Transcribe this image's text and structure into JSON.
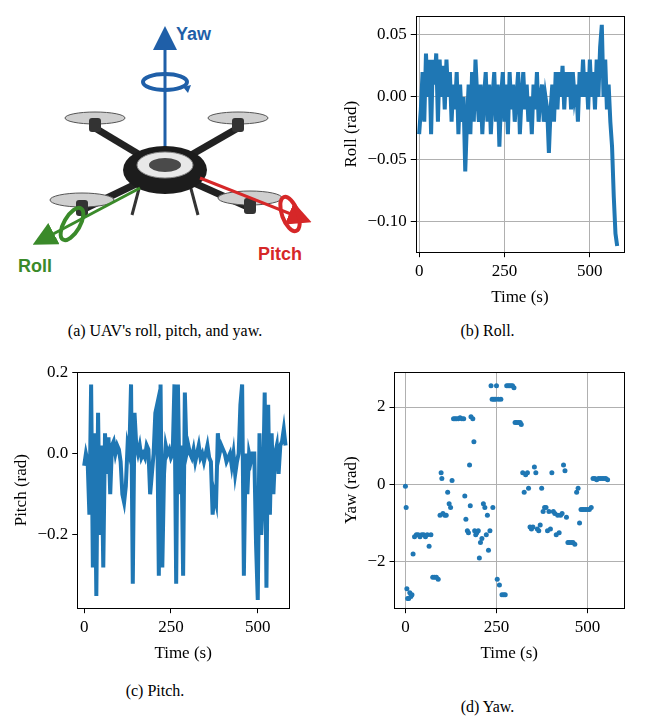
{
  "diagram": {
    "labels": {
      "yaw": "Yaw",
      "pitch": "Pitch",
      "roll": "Roll"
    },
    "caption": "(a) UAV's roll, pitch, and yaw."
  },
  "chart_data": [
    {
      "type": "line",
      "caption": "(b) Roll.",
      "x_label": "Time (s)",
      "y_label": "Roll (rad)",
      "color": "#1f77b4",
      "line_style": "solid",
      "grid": true,
      "xlim": [
        -10,
        600
      ],
      "xticks": [
        0,
        250,
        500
      ],
      "ylim": [
        -0.125,
        0.065
      ],
      "yticks": [
        {
          "value": -0.1,
          "label": "−0.10"
        },
        {
          "value": -0.05,
          "label": "−0.05"
        },
        {
          "value": 0,
          "label": "0.00"
        },
        {
          "value": 0.05,
          "label": "0.05"
        }
      ],
      "x": [
        0,
        5,
        10,
        15,
        20,
        25,
        30,
        35,
        40,
        45,
        50,
        55,
        60,
        65,
        70,
        75,
        80,
        85,
        90,
        95,
        100,
        105,
        110,
        115,
        120,
        125,
        130,
        135,
        140,
        145,
        150,
        155,
        160,
        165,
        170,
        175,
        180,
        185,
        190,
        195,
        200,
        205,
        210,
        215,
        220,
        225,
        230,
        235,
        240,
        245,
        250,
        255,
        260,
        265,
        270,
        275,
        280,
        285,
        290,
        295,
        300,
        305,
        310,
        315,
        320,
        325,
        330,
        335,
        340,
        345,
        350,
        355,
        360,
        365,
        370,
        375,
        380,
        385,
        390,
        395,
        400,
        405,
        410,
        415,
        420,
        425,
        430,
        435,
        440,
        445,
        450,
        455,
        460,
        465,
        470,
        475,
        480,
        485,
        490,
        495,
        500,
        505,
        510,
        515,
        520,
        525,
        530,
        535,
        540,
        545,
        550,
        555,
        560,
        565,
        570,
        575,
        580
      ],
      "values": [
        -0.03,
        -0.01,
        0.02,
        -0.02,
        0.035,
        0.0,
        0.03,
        -0.03,
        0.03,
        0.01,
        0.035,
        -0.02,
        0.03,
        0.0,
        0.025,
        -0.01,
        0.03,
        0.0,
        0.02,
        -0.02,
        0.01,
        -0.01,
        0.02,
        -0.03,
        0.01,
        -0.02,
        0.0,
        -0.06,
        -0.02,
        0.01,
        -0.03,
        0.02,
        -0.02,
        0.03,
        0.0,
        -0.02,
        0.01,
        -0.03,
        0.0,
        0.02,
        -0.02,
        0.01,
        -0.03,
        0.0,
        0.02,
        -0.02,
        0.01,
        -0.04,
        0.0,
        0.02,
        -0.02,
        0.01,
        -0.03,
        0.02,
        -0.01,
        0.01,
        -0.02,
        0.0,
        0.02,
        -0.03,
        0.0,
        0.02,
        -0.01,
        0.01,
        -0.02,
        0.0,
        -0.03,
        0.01,
        -0.01,
        0.02,
        -0.02,
        0.0,
        0.01,
        -0.02,
        0.0,
        -0.01,
        -0.045,
        -0.01,
        0.01,
        -0.02,
        0.02,
        -0.01,
        0.02,
        0.0,
        0.025,
        -0.01,
        0.02,
        0.0,
        0.02,
        -0.01,
        0.02,
        0.0,
        0.01,
        -0.02,
        0.02,
        0.0,
        0.03,
        0.0,
        0.02,
        -0.01,
        0.03,
        0.0,
        0.02,
        -0.01,
        0.03,
        0.0,
        0.04,
        0.058,
        0.0,
        0.03,
        -0.01,
        0.01,
        -0.02,
        -0.04,
        -0.08,
        -0.11,
        -0.12
      ]
    },
    {
      "type": "line",
      "caption": "(c) Pitch.",
      "x_label": "Time (s)",
      "y_label": "Pitch (rad)",
      "color": "#1f77b4",
      "line_style": "solid",
      "grid": false,
      "xlim": [
        -20,
        590
      ],
      "xticks": [
        0,
        250,
        500
      ],
      "ylim": [
        -0.38,
        0.2
      ],
      "yticks": [
        {
          "value": -0.2,
          "label": "−0.2"
        },
        {
          "value": 0,
          "label": "0.0"
        },
        {
          "value": 0.2,
          "label": "0.2"
        }
      ],
      "x": [
        0,
        5,
        10,
        15,
        20,
        25,
        30,
        35,
        40,
        45,
        50,
        55,
        60,
        65,
        70,
        75,
        80,
        85,
        90,
        95,
        100,
        105,
        110,
        115,
        120,
        125,
        130,
        135,
        140,
        145,
        150,
        155,
        160,
        165,
        170,
        175,
        180,
        185,
        190,
        195,
        200,
        205,
        210,
        215,
        220,
        225,
        230,
        235,
        240,
        245,
        250,
        255,
        260,
        265,
        270,
        275,
        280,
        285,
        290,
        295,
        300,
        305,
        310,
        315,
        320,
        325,
        330,
        335,
        340,
        345,
        350,
        355,
        360,
        365,
        370,
        375,
        380,
        385,
        390,
        395,
        400,
        405,
        410,
        415,
        420,
        425,
        430,
        435,
        440,
        445,
        450,
        455,
        460,
        465,
        470,
        475,
        480,
        485,
        490,
        495,
        500,
        505,
        510,
        515,
        520,
        525,
        530,
        535,
        540,
        545,
        550,
        555,
        560,
        565,
        570,
        575,
        580
      ],
      "values": [
        -0.03,
        0.0,
        -0.02,
        -0.15,
        0.17,
        -0.28,
        0.05,
        -0.35,
        0.1,
        -0.2,
        0.02,
        -0.28,
        0.05,
        -0.05,
        0.04,
        -0.1,
        0.02,
        0.03,
        0.0,
        0.02,
        0.01,
        -0.02,
        -0.1,
        -0.12,
        -0.08,
        0.02,
        0.0,
        0.17,
        -0.32,
        0.1,
        0.02,
        0.0,
        0.02,
        -0.01,
        0.0,
        -0.01,
        0.02,
        0.01,
        -0.1,
        -0.05,
        0.0,
        0.1,
        0.12,
        -0.3,
        0.17,
        -0.28,
        -0.05,
        0.02,
        0.0,
        0.01,
        -0.01,
        0.0,
        0.17,
        -0.32,
        0.17,
        -0.1,
        0.02,
        -0.3,
        0.15,
        0.0,
        0.02,
        0.0,
        -0.01,
        0.01,
        -0.02,
        0.0,
        0.02,
        -0.01,
        0.0,
        -0.02,
        0.0,
        0.02,
        -0.01,
        -0.02,
        -0.15,
        -0.1,
        -0.12,
        0.05,
        0.0,
        0.02,
        0.01,
        0.0,
        -0.02,
        -0.01,
        0.0,
        -0.03,
        0.0,
        -0.05,
        -0.02,
        0.0,
        0.12,
        0.17,
        -0.3,
        0.0,
        -0.1,
        0.0,
        -0.02,
        0.0,
        0.0,
        -0.22,
        -0.36,
        0.05,
        -0.2,
        -0.1,
        0.15,
        -0.33,
        0.12,
        -0.15,
        0.05,
        -0.1,
        0.0,
        0.02,
        -0.05,
        0.02,
        0.03,
        0.06,
        0.02
      ]
    },
    {
      "type": "scatter",
      "caption": "(d) Yaw.",
      "x_label": "Time (s)",
      "y_label": "Yaw (rad)",
      "color": "#1f77b4",
      "marker": "circle",
      "grid": true,
      "xlim": [
        -30,
        600
      ],
      "xticks": [
        0,
        250,
        500
      ],
      "ylim": [
        -3.2,
        2.9
      ],
      "yticks": [
        {
          "value": -2,
          "label": "−2"
        },
        0,
        2
      ],
      "x": [
        0,
        2,
        4,
        6,
        9,
        12,
        15,
        18,
        21,
        25,
        30,
        35,
        40,
        45,
        50,
        55,
        60,
        65,
        70,
        75,
        80,
        85,
        90,
        95,
        98,
        100,
        103,
        108,
        112,
        116,
        120,
        124,
        128,
        132,
        136,
        140,
        145,
        150,
        155,
        160,
        163,
        166,
        170,
        173,
        176,
        178,
        180,
        185,
        188,
        190,
        193,
        196,
        200,
        203,
        206,
        210,
        214,
        218,
        222,
        225,
        228,
        232,
        235,
        238,
        240,
        243,
        247,
        250,
        252,
        255,
        258,
        262,
        265,
        270,
        274,
        278,
        282,
        286,
        290,
        294,
        298,
        301,
        305,
        310,
        315,
        318,
        322,
        326,
        330,
        335,
        338,
        342,
        346,
        350,
        354,
        358,
        362,
        366,
        370,
        374,
        378,
        382,
        386,
        390,
        394,
        398,
        402,
        406,
        410,
        414,
        418,
        422,
        426,
        430,
        434,
        438,
        442,
        446,
        450,
        455,
        460,
        465,
        470,
        474,
        478,
        482,
        486,
        490,
        495,
        500,
        505,
        510,
        515,
        520,
        525,
        530,
        535,
        540,
        545,
        550,
        555
      ],
      "values": [
        -0.05,
        -0.6,
        -2.7,
        -2.95,
        -2.95,
        -2.8,
        -2.9,
        -2.85,
        -1.8,
        -1.35,
        -1.3,
        -1.3,
        -1.35,
        -1.3,
        -1.3,
        -1.35,
        -1.3,
        -1.6,
        -1.3,
        -2.4,
        -2.4,
        -2.4,
        -2.45,
        -0.8,
        0.3,
        0.15,
        -0.75,
        -0.8,
        -0.8,
        -0.2,
        -0.5,
        -0.6,
        0.1,
        1.7,
        1.7,
        1.7,
        1.7,
        1.72,
        1.7,
        1.7,
        -0.3,
        -0.9,
        -1.2,
        -1.25,
        0.5,
        -0.55,
        1.75,
        1.7,
        1.1,
        -1.2,
        -1.3,
        -1.25,
        -1.2,
        -1.9,
        -1.5,
        -1.4,
        -0.5,
        -0.6,
        -1.3,
        -0.8,
        -1.7,
        -1.2,
        2.55,
        2.2,
        -0.6,
        2.2,
        2.2,
        2.55,
        -2.45,
        2.2,
        -2.6,
        2.2,
        -2.85,
        -2.85,
        -2.85,
        2.55,
        2.55,
        2.55,
        2.55,
        2.55,
        2.5,
        1.6,
        1.6,
        1.6,
        1.6,
        1.55,
        0.3,
        -0.2,
        0.25,
        0.3,
        -0.1,
        -1.1,
        -1.15,
        -1.1,
        0.45,
        0.3,
        -1.15,
        -1.2,
        -1.05,
        -0.1,
        -0.7,
        -0.6,
        -0.6,
        -1.2,
        -0.7,
        -1.15,
        0.3,
        -0.7,
        -0.75,
        -1.3,
        -0.8,
        -1.25,
        -0.8,
        -0.75,
        0.5,
        0.35,
        -0.85,
        -1.5,
        -1.5,
        -1.5,
        -1.5,
        -1.55,
        -0.2,
        -0.1,
        -1.0,
        -0.65,
        -0.65,
        -0.65,
        -0.65,
        -0.65,
        -0.65,
        -0.6,
        0.15,
        0.15,
        0.12,
        0.15,
        0.15,
        0.15,
        0.15,
        0.15,
        0.12
      ]
    }
  ]
}
